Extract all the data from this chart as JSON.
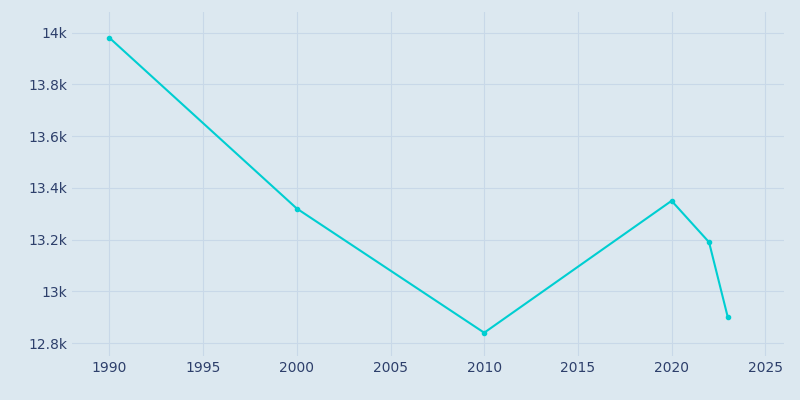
{
  "years": [
    1990,
    2000,
    2010,
    2020,
    2022,
    2023
  ],
  "population": [
    13980,
    13320,
    12840,
    13350,
    13190,
    12900
  ],
  "line_color": "#00CED1",
  "marker": "o",
  "marker_size": 3,
  "bg_color": "#dce8f0",
  "grid_color": "#c8d8e8",
  "xlim": [
    1988,
    2026
  ],
  "ylim": [
    12750,
    14080
  ],
  "yticks": [
    12800,
    13000,
    13200,
    13400,
    13600,
    13800,
    14000
  ],
  "ytick_labels": [
    "12.8k",
    "13k",
    "13.2k",
    "13.4k",
    "13.6k",
    "13.8k",
    "14k"
  ],
  "xticks": [
    1990,
    1995,
    2000,
    2005,
    2010,
    2015,
    2020,
    2025
  ],
  "tick_color": "#2d3f6b",
  "line_width": 1.5
}
